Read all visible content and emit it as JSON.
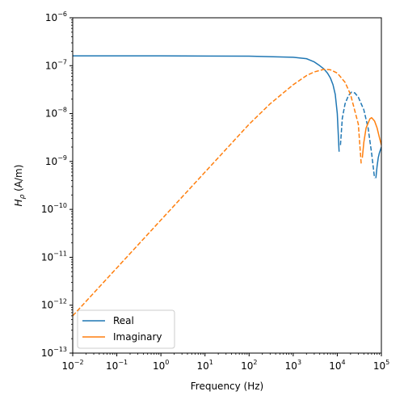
{
  "chart_data": {
    "type": "line",
    "title": "",
    "xlabel": "Frequency (Hz)",
    "ylabel_main": "H",
    "ylabel_sub": "ρ",
    "ylabel_unit": " (A/m)",
    "xscale": "log",
    "yscale": "log",
    "xlim": [
      0.01,
      100000
    ],
    "ylim": [
      1e-13,
      1e-06
    ],
    "grid": false,
    "legend_position": "lower-left",
    "x_ticks": [
      {
        "value": 0.01,
        "base": "10",
        "exp": "−2"
      },
      {
        "value": 0.1,
        "base": "10",
        "exp": "−1"
      },
      {
        "value": 1,
        "base": "10",
        "exp": "0"
      },
      {
        "value": 10,
        "base": "10",
        "exp": "1"
      },
      {
        "value": 100,
        "base": "10",
        "exp": "2"
      },
      {
        "value": 1000,
        "base": "10",
        "exp": "3"
      },
      {
        "value": 10000,
        "base": "10",
        "exp": "4"
      },
      {
        "value": 100000,
        "base": "10",
        "exp": "5"
      }
    ],
    "y_ticks": [
      {
        "value": 1e-13,
        "base": "10",
        "exp": "−13"
      },
      {
        "value": 1e-12,
        "base": "10",
        "exp": "−12"
      },
      {
        "value": 1e-11,
        "base": "10",
        "exp": "−11"
      },
      {
        "value": 1e-10,
        "base": "10",
        "exp": "−10"
      },
      {
        "value": 1e-09,
        "base": "10",
        "exp": "−9"
      },
      {
        "value": 1e-08,
        "base": "10",
        "exp": "−8"
      },
      {
        "value": 1e-07,
        "base": "10",
        "exp": "−7"
      },
      {
        "value": 1e-06,
        "base": "10",
        "exp": "−6"
      }
    ],
    "series": [
      {
        "name": "Real",
        "color": "#1f77b4",
        "segments": [
          {
            "style": "solid",
            "points": [
              [
                0.01,
                1.6e-07
              ],
              [
                1,
                1.6e-07
              ],
              [
                100,
                1.58e-07
              ],
              [
                1000,
                1.5e-07
              ],
              [
                2000,
                1.4e-07
              ],
              [
                3000,
                1.2e-07
              ],
              [
                4000,
                1e-07
              ],
              [
                5000,
                8.5e-08
              ],
              [
                6000,
                7e-08
              ],
              [
                7000,
                5.5e-08
              ],
              [
                8000,
                4e-08
              ],
              [
                9000,
                2.5e-08
              ],
              [
                10000,
                1e-08
              ],
              [
                11000,
                1.6e-09
              ]
            ]
          },
          {
            "style": "dashed",
            "points": [
              [
                11800,
                2.2e-09
              ],
              [
                13000,
                8e-09
              ],
              [
                15000,
                1.6e-08
              ],
              [
                18000,
                2.4e-08
              ],
              [
                21000,
                2.8e-08
              ],
              [
                25000,
                2.7e-08
              ],
              [
                30000,
                2.2e-08
              ],
              [
                40000,
                1.2e-08
              ],
              [
                50000,
                5e-09
              ],
              [
                60000,
                1.5e-09
              ],
              [
                70000,
                4.5e-10
              ]
            ]
          },
          {
            "style": "solid",
            "points": [
              [
                75000,
                4.5e-10
              ],
              [
                80000,
                8e-10
              ],
              [
                85000,
                1.2e-09
              ],
              [
                90000,
                1.5e-09
              ],
              [
                100000,
                2e-09
              ]
            ]
          }
        ]
      },
      {
        "name": "Imaginary",
        "color": "#ff7f0e",
        "segments": [
          {
            "style": "dashed",
            "points": [
              [
                0.01,
                6e-13
              ],
              [
                0.1,
                6e-12
              ],
              [
                1,
                6e-11
              ],
              [
                10,
                6e-10
              ],
              [
                100,
                6e-09
              ],
              [
                300,
                1.6e-08
              ],
              [
                1000,
                4e-08
              ],
              [
                2000,
                6.2e-08
              ],
              [
                3000,
                7.4e-08
              ],
              [
                5000,
                8.4e-08
              ],
              [
                7000,
                8.2e-08
              ],
              [
                10000,
                7e-08
              ],
              [
                15000,
                4.5e-08
              ],
              [
                20000,
                2.5e-08
              ],
              [
                30000,
                6e-09
              ],
              [
                35000,
                8.5e-10
              ]
            ]
          },
          {
            "style": "solid",
            "points": [
              [
                37000,
                1.2e-09
              ],
              [
                40000,
                2.5e-09
              ],
              [
                45000,
                5e-09
              ],
              [
                55000,
                7.8e-09
              ],
              [
                60000,
                8.2e-09
              ],
              [
                70000,
                7e-09
              ],
              [
                80000,
                5e-09
              ],
              [
                90000,
                3.2e-09
              ],
              [
                100000,
                2.2e-09
              ]
            ]
          }
        ]
      }
    ]
  }
}
